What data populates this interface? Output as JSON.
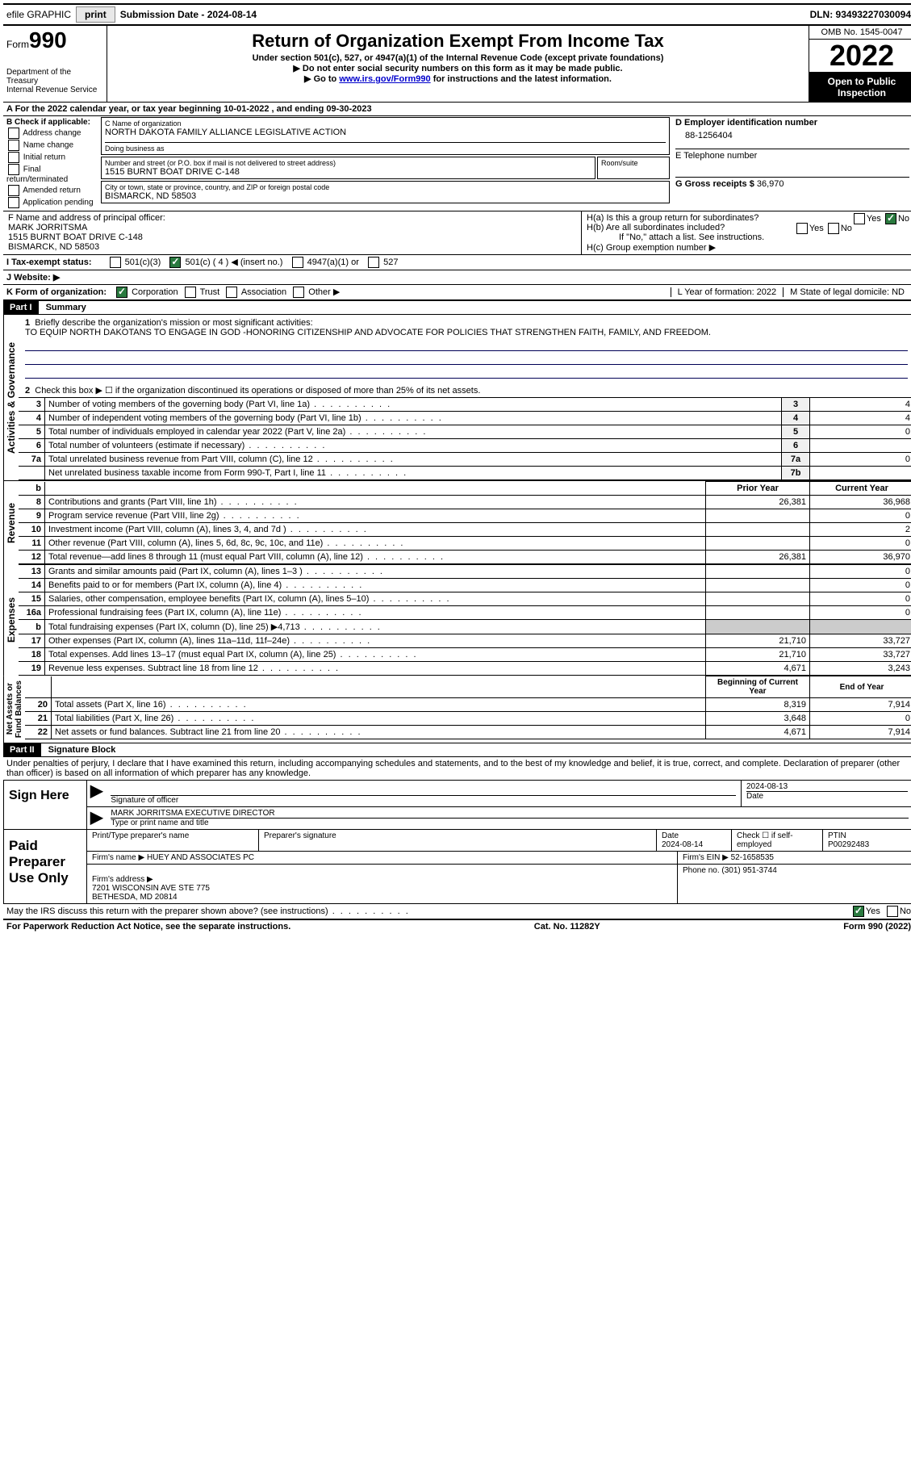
{
  "topbar": {
    "efile": "efile GRAPHIC",
    "print": "print",
    "subdate_label": "Submission Date - 2024-08-14",
    "dln": "DLN: 93493227030094"
  },
  "header": {
    "form_label": "Form",
    "form_number": "990",
    "dept": "Department of the Treasury\nInternal Revenue Service",
    "title": "Return of Organization Exempt From Income Tax",
    "subtitle": "Under section 501(c), 527, or 4947(a)(1) of the Internal Revenue Code (except private foundations)",
    "note1": "▶ Do not enter social security numbers on this form as it may be made public.",
    "note2_pre": "▶ Go to ",
    "note2_link": "www.irs.gov/Form990",
    "note2_post": " for instructions and the latest information.",
    "omb": "OMB No. 1545-0047",
    "year": "2022",
    "open": "Open to Public Inspection"
  },
  "row_a": "A For the 2022 calendar year, or tax year beginning 10-01-2022    , and ending 09-30-2023",
  "section_b": {
    "title": "B Check if applicable:",
    "items": [
      "Address change",
      "Name change",
      "Initial return",
      "Final return/terminated",
      "Amended return",
      "Application pending"
    ]
  },
  "section_c": {
    "name_label": "C Name of organization",
    "name": "NORTH DAKOTA FAMILY ALLIANCE LEGISLATIVE ACTION",
    "dba_label": "Doing business as",
    "dba": "",
    "street_label": "Number and street (or P.O. box if mail is not delivered to street address)",
    "street": "1515 BURNT BOAT DRIVE C-148",
    "room_label": "Room/suite",
    "city_label": "City or town, state or province, country, and ZIP or foreign postal code",
    "city": "BISMARCK, ND  58503"
  },
  "section_d": {
    "label": "D Employer identification number",
    "ein": "88-1256404",
    "tel_label": "E Telephone number",
    "tel": "",
    "gross_label": "G Gross receipts $",
    "gross": "36,970"
  },
  "section_f": {
    "label": "F  Name and address of principal officer:",
    "name": "MARK JORRITSMA",
    "addr1": "1515 BURNT BOAT DRIVE C-148",
    "addr2": "BISMARCK, ND  58503"
  },
  "section_h": {
    "ha": "H(a)  Is this a group return for subordinates?",
    "hb": "H(b)  Are all subordinates included?",
    "hb_note": "If \"No,\" attach a list. See instructions.",
    "hc": "H(c)  Group exemption number ▶"
  },
  "row_i": {
    "label": "I   Tax-exempt status:",
    "opts": [
      "501(c)(3)",
      "501(c) ( 4 ) ◀ (insert no.)",
      "4947(a)(1) or",
      "527"
    ]
  },
  "row_j": "J   Website: ▶",
  "row_k": {
    "label": "K Form of organization:",
    "opts": [
      "Corporation",
      "Trust",
      "Association",
      "Other ▶"
    ],
    "l_label": "L Year of formation: 2022",
    "m_label": "M State of legal domicile: ND"
  },
  "part1": {
    "header": "Part I",
    "title": "Summary",
    "q1": "Briefly describe the organization's mission or most significant activities:",
    "mission": "TO EQUIP NORTH DAKOTANS TO ENGAGE IN GOD -HONORING CITIZENSHIP AND ADVOCATE FOR POLICIES THAT STRENGTHEN FAITH, FAMILY, AND FREEDOM.",
    "q2": "Check this box ▶ ☐  if the organization discontinued its operations or disposed of more than 25% of its net assets.",
    "lines_ag": [
      {
        "n": "3",
        "d": "Number of voting members of the governing body (Part VI, line 1a)",
        "box": "3",
        "v": "4"
      },
      {
        "n": "4",
        "d": "Number of independent voting members of the governing body (Part VI, line 1b)",
        "box": "4",
        "v": "4"
      },
      {
        "n": "5",
        "d": "Total number of individuals employed in calendar year 2022 (Part V, line 2a)",
        "box": "5",
        "v": "0"
      },
      {
        "n": "6",
        "d": "Total number of volunteers (estimate if necessary)",
        "box": "6",
        "v": ""
      },
      {
        "n": "7a",
        "d": "Total unrelated business revenue from Part VIII, column (C), line 12",
        "box": "7a",
        "v": "0"
      },
      {
        "n": "",
        "d": "Net unrelated business taxable income from Form 990-T, Part I, line 11",
        "box": "7b",
        "v": ""
      }
    ],
    "col_headers": {
      "prior": "Prior Year",
      "current": "Current Year"
    },
    "lines_rev": [
      {
        "n": "8",
        "d": "Contributions and grants (Part VIII, line 1h)",
        "p": "26,381",
        "c": "36,968"
      },
      {
        "n": "9",
        "d": "Program service revenue (Part VIII, line 2g)",
        "p": "",
        "c": "0"
      },
      {
        "n": "10",
        "d": "Investment income (Part VIII, column (A), lines 3, 4, and 7d )",
        "p": "",
        "c": "2"
      },
      {
        "n": "11",
        "d": "Other revenue (Part VIII, column (A), lines 5, 6d, 8c, 9c, 10c, and 11e)",
        "p": "",
        "c": "0"
      },
      {
        "n": "12",
        "d": "Total revenue—add lines 8 through 11 (must equal Part VIII, column (A), line 12)",
        "p": "26,381",
        "c": "36,970"
      }
    ],
    "lines_exp": [
      {
        "n": "13",
        "d": "Grants and similar amounts paid (Part IX, column (A), lines 1–3 )",
        "p": "",
        "c": "0"
      },
      {
        "n": "14",
        "d": "Benefits paid to or for members (Part IX, column (A), line 4)",
        "p": "",
        "c": "0"
      },
      {
        "n": "15",
        "d": "Salaries, other compensation, employee benefits (Part IX, column (A), lines 5–10)",
        "p": "",
        "c": "0"
      },
      {
        "n": "16a",
        "d": "Professional fundraising fees (Part IX, column (A), line 11e)",
        "p": "",
        "c": "0"
      },
      {
        "n": "b",
        "d": "Total fundraising expenses (Part IX, column (D), line 25) ▶4,713",
        "p": "SHADED",
        "c": "SHADED"
      },
      {
        "n": "17",
        "d": "Other expenses (Part IX, column (A), lines 11a–11d, 11f–24e)",
        "p": "21,710",
        "c": "33,727"
      },
      {
        "n": "18",
        "d": "Total expenses. Add lines 13–17 (must equal Part IX, column (A), line 25)",
        "p": "21,710",
        "c": "33,727"
      },
      {
        "n": "19",
        "d": "Revenue less expenses. Subtract line 18 from line 12",
        "p": "4,671",
        "c": "3,243"
      }
    ],
    "col_headers2": {
      "beg": "Beginning of Current Year",
      "end": "End of Year"
    },
    "lines_net": [
      {
        "n": "20",
        "d": "Total assets (Part X, line 16)",
        "p": "8,319",
        "c": "7,914"
      },
      {
        "n": "21",
        "d": "Total liabilities (Part X, line 26)",
        "p": "3,648",
        "c": "0"
      },
      {
        "n": "22",
        "d": "Net assets or fund balances. Subtract line 21 from line 20",
        "p": "4,671",
        "c": "7,914"
      }
    ]
  },
  "part2": {
    "header": "Part II",
    "title": "Signature Block",
    "penalty": "Under penalties of perjury, I declare that I have examined this return, including accompanying schedules and statements, and to the best of my knowledge and belief, it is true, correct, and complete. Declaration of preparer (other than officer) is based on all information of which preparer has any knowledge.",
    "sign_here": "Sign Here",
    "sig_officer": "Signature of officer",
    "sig_date": "2024-08-13",
    "printed_name": "MARK JORRITSMA  EXECUTIVE DIRECTOR",
    "printed_label": "Type or print name and title",
    "paid": "Paid Preparer Use Only",
    "prep_name_label": "Print/Type preparer's name",
    "prep_sig_label": "Preparer's signature",
    "prep_date_label": "Date",
    "prep_date": "2024-08-14",
    "self_emp": "Check ☐ if self-employed",
    "ptin_label": "PTIN",
    "ptin": "P00292483",
    "firm_name_label": "Firm's name    ▶",
    "firm_name": "HUEY AND ASSOCIATES PC",
    "firm_ein_label": "Firm's EIN ▶",
    "firm_ein": "52-1658535",
    "firm_addr_label": "Firm's address ▶",
    "firm_addr": "7201 WISCONSIN AVE STE 775\nBETHESDA, MD  20814",
    "phone_label": "Phone no.",
    "phone": "(301) 951-3744",
    "discuss": "May the IRS discuss this return with the preparer shown above? (see instructions)"
  },
  "footer": {
    "left": "For Paperwork Reduction Act Notice, see the separate instructions.",
    "mid": "Cat. No. 11282Y",
    "right": "Form 990 (2022)"
  }
}
